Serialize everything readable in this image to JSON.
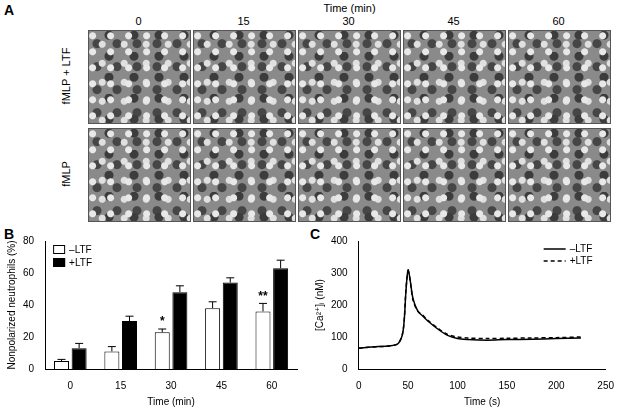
{
  "panel_a": {
    "label": "A",
    "column_title": "Time (min)",
    "columns": [
      "0",
      "15",
      "30",
      "45",
      "60"
    ],
    "rows": [
      "fMLP + LTF",
      "fMLP"
    ]
  },
  "chart_data": [
    {
      "type": "bar",
      "title": "B",
      "x_label": "Time (min)",
      "y_label": "Nonpolarized neutrophils (%)",
      "categories": [
        "0",
        "15",
        "30",
        "45",
        "60"
      ],
      "series": [
        {
          "name": "–LTF",
          "color": "#ffffff",
          "values": [
            5,
            11,
            23,
            38,
            36
          ],
          "errors": [
            1,
            3,
            2,
            4,
            5
          ]
        },
        {
          "name": "+LTF",
          "color": "#000000",
          "values": [
            13,
            30,
            48,
            54,
            63
          ],
          "errors": [
            3,
            3,
            4,
            3,
            5
          ]
        }
      ],
      "ylim": [
        0,
        80
      ],
      "yticks": [
        0,
        20,
        40,
        60,
        80
      ],
      "grid": false,
      "legend": "upper left",
      "annotations": [
        {
          "category": "30",
          "series": "–LTF",
          "text": "*"
        },
        {
          "category": "60",
          "series": "–LTF",
          "text": "**"
        }
      ]
    },
    {
      "type": "line",
      "title": "C",
      "x_label": "Time (s)",
      "y_label": "[Ca²⁺]ᵢ (nM)",
      "x": [
        0,
        10,
        20,
        30,
        40,
        45,
        48,
        50,
        52,
        55,
        60,
        65,
        70,
        80,
        90,
        100,
        110,
        130,
        150,
        175,
        200,
        225
      ],
      "series": [
        {
          "name": "–LTF",
          "color": "#000000",
          "line_style": "solid",
          "values": [
            65,
            68,
            70,
            72,
            80,
            120,
            250,
            310,
            280,
            220,
            180,
            165,
            150,
            125,
            105,
            95,
            92,
            90,
            92,
            93,
            95,
            97
          ]
        },
        {
          "name": "+LTF",
          "color": "#000000",
          "line_style": "dashed",
          "values": [
            65,
            68,
            70,
            72,
            80,
            120,
            255,
            305,
            280,
            215,
            180,
            168,
            152,
            128,
            108,
            100,
            97,
            95,
            96,
            97,
            98,
            100
          ]
        }
      ],
      "xlim": [
        0,
        250
      ],
      "xticks": [
        0,
        50,
        100,
        150,
        200,
        250
      ],
      "ylim": [
        0,
        400
      ],
      "yticks": [
        0,
        100,
        200,
        300,
        400
      ],
      "grid": false,
      "legend": "upper right"
    }
  ]
}
